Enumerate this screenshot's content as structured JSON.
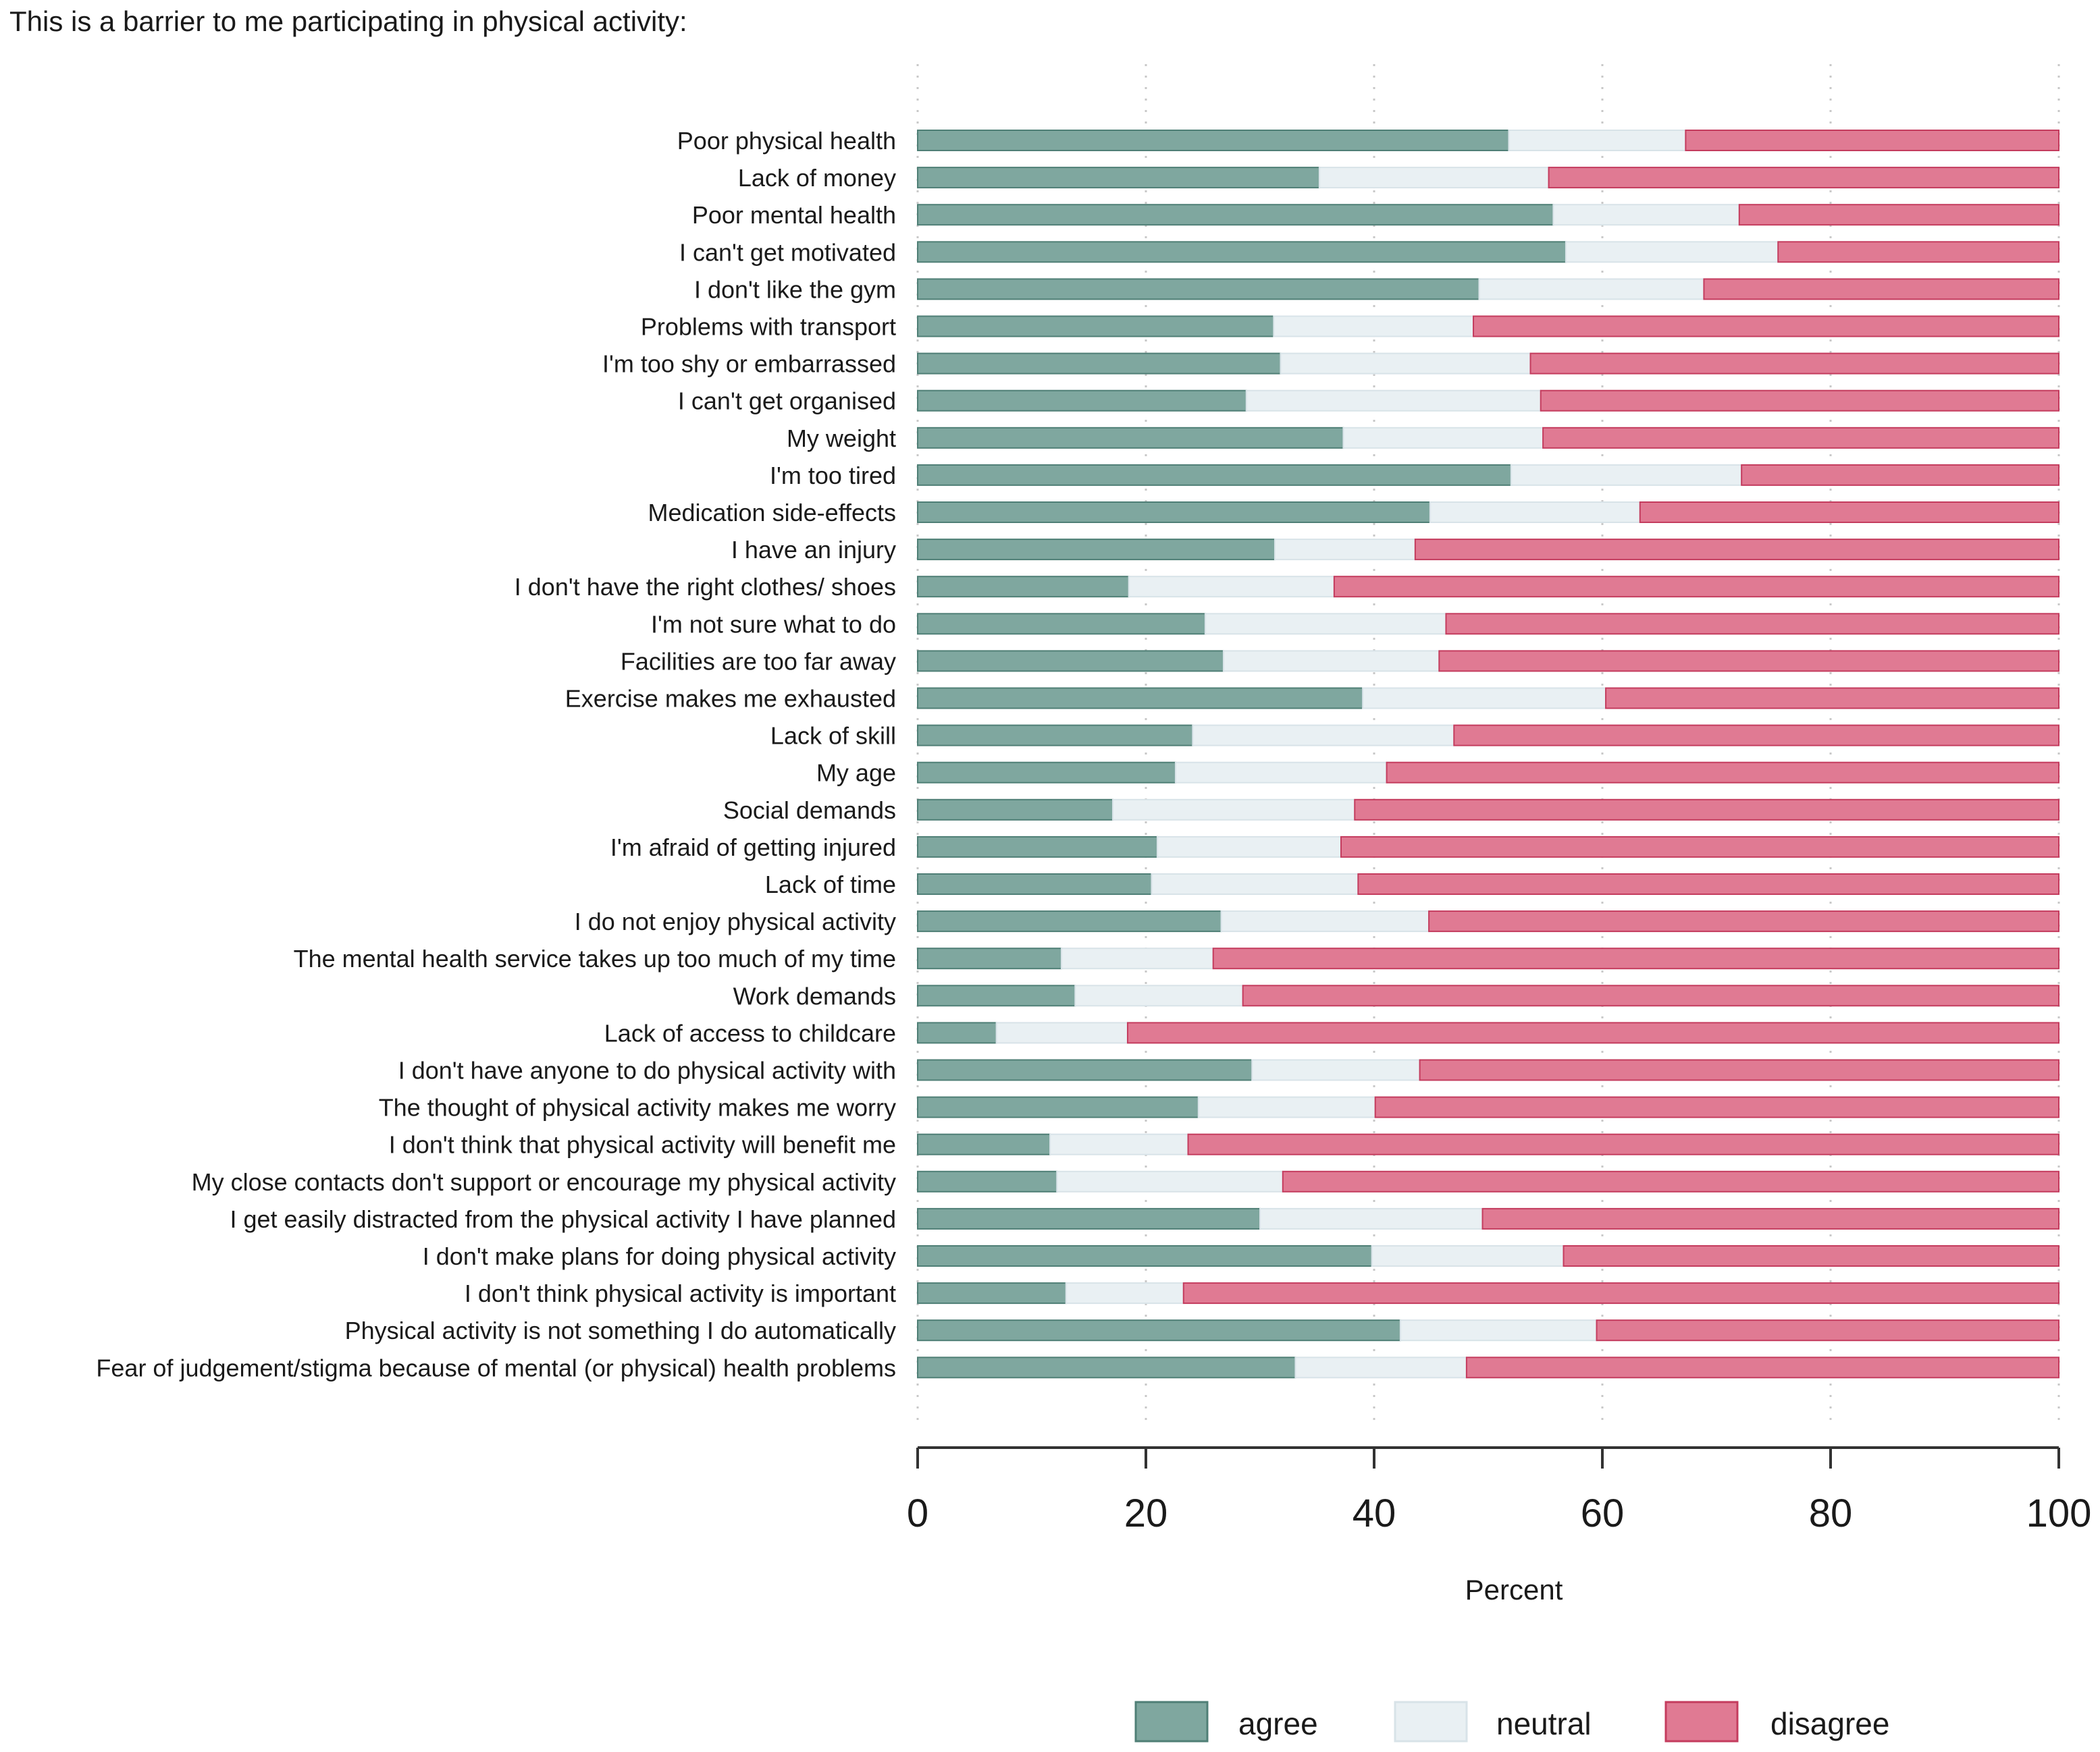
{
  "chart_data": {
    "type": "bar",
    "orientation": "horizontal",
    "stacked": true,
    "title": "This is a barrier to me participating in physical activity:",
    "xlabel": "Percent",
    "ylabel": "",
    "xlim": [
      0,
      100
    ],
    "xticks": [
      "0",
      "20",
      "40",
      "60",
      "80",
      "100"
    ],
    "grid": true,
    "legend_position": "bottom-right",
    "categories": [
      "Poor physical health",
      "Lack of money",
      "Poor mental health",
      "I can't get motivated",
      "I don't like the gym",
      "Problems with transport",
      "I'm too shy or embarrassed",
      "I can't get organised",
      "My weight",
      "I'm too tired",
      "Medication side-effects",
      "I have an injury",
      "I don't have the right clothes/ shoes",
      "I'm not sure what to do",
      "Facilities are too far away",
      "Exercise makes me exhausted",
      "Lack of skill",
      "My age",
      "Social demands",
      "I'm afraid of getting injured",
      "Lack of time",
      "I do not enjoy physical activity",
      "The mental health service takes up too much of my time",
      "Work demands",
      "Lack of access to childcare",
      "I don't have anyone to do physical activity with",
      "The thought of physical activity makes me worry",
      "I don't think that physical activity will benefit me",
      "My close contacts don't support or encourage my physical activity",
      "I get easily distracted from the physical activity I have planned",
      "I don't make plans for doing physical activity",
      "I don't think physical activity is important",
      "Physical activity is not something I do automatically",
      "Fear of judgement/stigma because of mental (or physical) health problems"
    ],
    "series": [
      {
        "name": "agree",
        "color": "#7fa79f",
        "values": [
          51.8,
          35.2,
          55.7,
          56.8,
          49.2,
          31.2,
          31.8,
          28.8,
          37.3,
          52.0,
          44.9,
          31.3,
          18.5,
          25.2,
          26.8,
          39.0,
          24.1,
          22.6,
          17.1,
          21.0,
          20.5,
          26.6,
          12.6,
          13.8,
          6.9,
          29.3,
          24.6,
          11.6,
          12.2,
          30.0,
          39.8,
          13.0,
          42.3,
          33.1
        ]
      },
      {
        "name": "neutral",
        "color": "#e9f0f3",
        "values": [
          15.5,
          20.1,
          16.3,
          18.6,
          19.7,
          17.5,
          21.9,
          25.8,
          17.5,
          20.2,
          18.4,
          12.3,
          18.0,
          21.1,
          18.9,
          21.3,
          22.9,
          18.5,
          21.2,
          16.1,
          18.1,
          18.2,
          13.3,
          14.7,
          11.5,
          14.7,
          15.5,
          12.1,
          19.8,
          19.5,
          16.8,
          10.3,
          17.2,
          15.0
        ]
      },
      {
        "name": "disagree",
        "color": "#e07a93",
        "values": [
          32.7,
          44.7,
          28.0,
          24.6,
          31.1,
          51.3,
          46.3,
          45.4,
          45.2,
          27.8,
          36.7,
          56.4,
          63.5,
          53.7,
          54.3,
          39.7,
          53.0,
          58.9,
          61.7,
          62.9,
          61.4,
          55.2,
          74.1,
          71.5,
          81.6,
          56.0,
          59.9,
          76.3,
          68.0,
          50.5,
          43.4,
          76.7,
          40.5,
          51.9
        ]
      }
    ]
  }
}
